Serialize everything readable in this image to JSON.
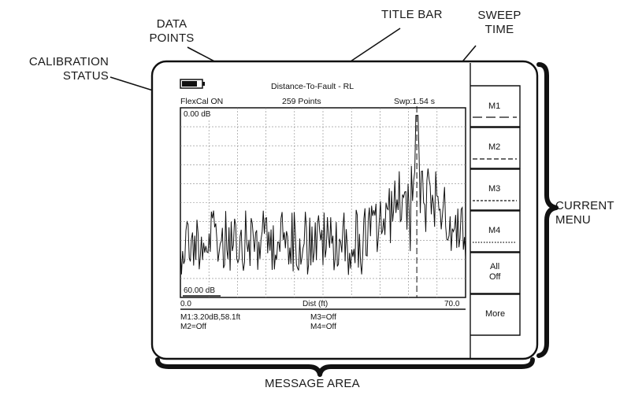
{
  "callouts": {
    "data_points": [
      "DATA",
      "POINTS"
    ],
    "title_bar": "TITLE BAR",
    "sweep_time": [
      "SWEEP",
      "TIME"
    ],
    "calibration_status": [
      "CALIBRATION",
      "STATUS"
    ],
    "current_menu": [
      "CURRENT",
      "MENU"
    ],
    "message_area": "MESSAGE AREA"
  },
  "screen": {
    "title": "Distance-To-Fault - RL",
    "cal_status": "FlexCal ON",
    "points": "259 Points",
    "sweep": "Swp:1.54 s",
    "battery_icon": "battery-icon"
  },
  "plot": {
    "y_top_label": "0.00 dB",
    "y_bottom_label": "60.00 dB",
    "x_start": "0.0",
    "x_label": "Dist (ft)",
    "x_end": "70.0",
    "marker_x_fraction": 0.829
  },
  "messages": {
    "m1": "M1:3.20dB,58.1ft",
    "m2": "M2=Off",
    "m3": "M3=Off",
    "m4": "M4=Off"
  },
  "menu": {
    "m1": "M1",
    "m2": "M2",
    "m3": "M3",
    "m4": "M4",
    "all_off": [
      "All",
      "Off"
    ],
    "more": "More"
  }
}
